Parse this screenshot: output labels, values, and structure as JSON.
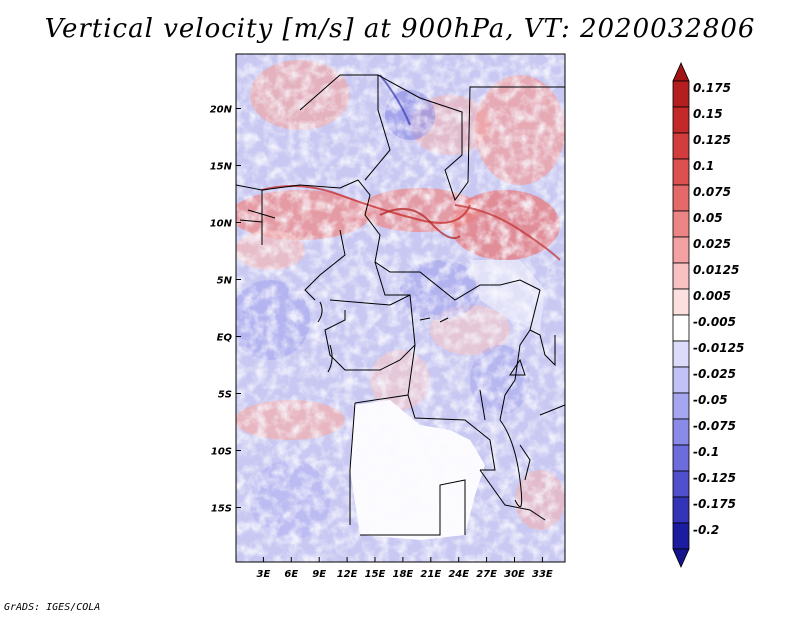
{
  "chart_data": {
    "type": "heatmap",
    "title": "Vertical velocity [m/s] at 900hPa, VT: 2020032806",
    "variable": "Vertical velocity",
    "units": "m/s",
    "level": "900hPa",
    "valid_time": "2020032806",
    "x_range_deg_east": [
      0,
      35
    ],
    "y_range_deg_north": [
      -20,
      25
    ],
    "x_ticks": [
      {
        "value": 3,
        "label": "3E"
      },
      {
        "value": 6,
        "label": "6E"
      },
      {
        "value": 9,
        "label": "9E"
      },
      {
        "value": 12,
        "label": "12E"
      },
      {
        "value": 15,
        "label": "15E"
      },
      {
        "value": 18,
        "label": "18E"
      },
      {
        "value": 21,
        "label": "21E"
      },
      {
        "value": 24,
        "label": "24E"
      },
      {
        "value": 27,
        "label": "27E"
      },
      {
        "value": 30,
        "label": "30E"
      },
      {
        "value": 33,
        "label": "33E"
      }
    ],
    "y_ticks": [
      {
        "value": 20,
        "label": "20N"
      },
      {
        "value": 15,
        "label": "15N"
      },
      {
        "value": 10,
        "label": "10N"
      },
      {
        "value": 5,
        "label": "5N"
      },
      {
        "value": 0,
        "label": "EQ"
      },
      {
        "value": -5,
        "label": "5S"
      },
      {
        "value": -10,
        "label": "10S"
      },
      {
        "value": -15,
        "label": "15S"
      }
    ],
    "colorbar_levels": [
      {
        "label": "0.175",
        "color": "#b41e1e"
      },
      {
        "label": "0.15",
        "color": "#c42828"
      },
      {
        "label": "0.125",
        "color": "#d23c3c"
      },
      {
        "label": "0.1",
        "color": "#dc5050"
      },
      {
        "label": "0.075",
        "color": "#e46a6a"
      },
      {
        "label": "0.05",
        "color": "#ec8686"
      },
      {
        "label": "0.025",
        "color": "#f2a2a2"
      },
      {
        "label": "0.0125",
        "color": "#f8c2c2"
      },
      {
        "label": "0.005",
        "color": "#fce0e0"
      },
      {
        "label": "-0.005",
        "color": "#ffffff"
      },
      {
        "label": "-0.0125",
        "color": "#dcdcfa"
      },
      {
        "label": "-0.025",
        "color": "#c2c2f6"
      },
      {
        "label": "-0.05",
        "color": "#a6a6f0"
      },
      {
        "label": "-0.075",
        "color": "#8a8ae8"
      },
      {
        "label": "-0.1",
        "color": "#6c6cdc"
      },
      {
        "label": "-0.125",
        "color": "#5050cc"
      },
      {
        "label": "-0.175",
        "color": "#3434b8"
      },
      {
        "label": "-0.2",
        "color": "#1c1ca0"
      }
    ],
    "colorbar_top_color": "#a01414",
    "colorbar_bottom_color": "#14148c",
    "credit": "GrADS: IGES/COLA"
  }
}
